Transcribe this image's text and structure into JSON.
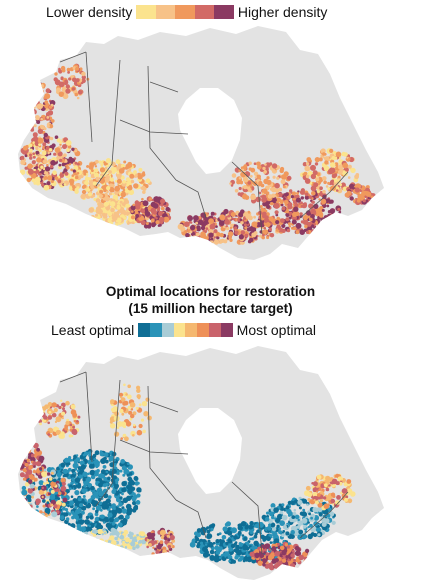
{
  "density_map": {
    "legend": {
      "low_label": "Lower density",
      "high_label": "Higher density",
      "colors": [
        "#fbe38e",
        "#f7c288",
        "#f0995d",
        "#d26a66",
        "#8b3a62"
      ]
    }
  },
  "optimal_map": {
    "title_line1": "Optimal locations for restoration",
    "title_line2": "(15 million hectare target)",
    "legend": {
      "low_label": "Least optimal",
      "high_label": "Most optimal",
      "colors": [
        "#0f6e95",
        "#2a93b8",
        "#a8ccd6",
        "#fbe38e",
        "#f5b870",
        "#ee9058",
        "#c9636b",
        "#8b3a62"
      ]
    }
  },
  "map_style": {
    "land": "#e3e3e3",
    "water": "#ffffff",
    "border": "#555555"
  }
}
